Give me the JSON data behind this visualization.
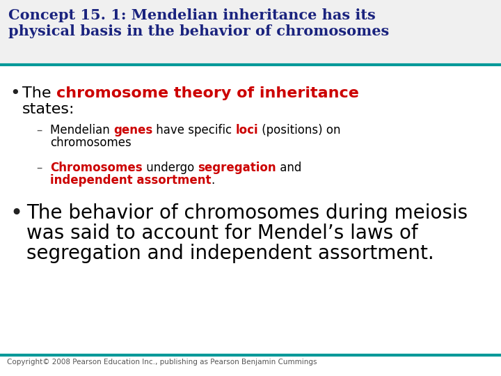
{
  "title_line1": "Concept 15. 1: Mendelian inheritance has its",
  "title_line2": "physical basis in the behavior of chromosomes",
  "title_color": "#1a237e",
  "title_fontsize": 15,
  "teal_color": "#009999",
  "bg_color": "#ffffff",
  "bullet1_fontsize": 16,
  "sub_fontsize": 12,
  "bullet2_fontsize": 20,
  "bullet2_color": "#000000",
  "copyright": "Copyright© 2008 Pearson Education Inc., publishing as Pearson Benjamin Cummings",
  "copyright_fontsize": 7.5,
  "copyright_color": "#555555"
}
